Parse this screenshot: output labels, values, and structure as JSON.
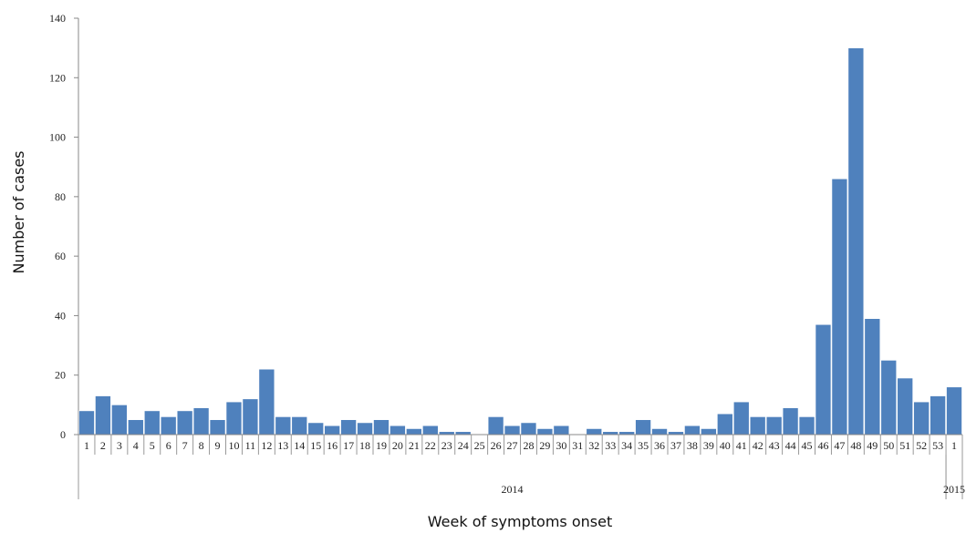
{
  "chart_data": {
    "type": "bar",
    "title": "",
    "xlabel": "Week of symptoms onset",
    "ylabel": "Number of cases",
    "ylim": [
      0,
      140
    ],
    "yticks": [
      0,
      20,
      40,
      60,
      80,
      100,
      120,
      140
    ],
    "grid": false,
    "bar_color": "#4F81BD",
    "categories": [
      "1",
      "2",
      "3",
      "4",
      "5",
      "6",
      "7",
      "8",
      "9",
      "10",
      "11",
      "12",
      "13",
      "14",
      "15",
      "16",
      "17",
      "18",
      "19",
      "20",
      "21",
      "22",
      "23",
      "24",
      "25",
      "26",
      "27",
      "28",
      "29",
      "30",
      "31",
      "32",
      "33",
      "34",
      "35",
      "36",
      "37",
      "38",
      "39",
      "40",
      "41",
      "42",
      "43",
      "44",
      "45",
      "46",
      "47",
      "48",
      "49",
      "50",
      "51",
      "52",
      "53",
      "1"
    ],
    "values": [
      8,
      13,
      10,
      5,
      8,
      6,
      8,
      9,
      5,
      11,
      12,
      22,
      6,
      6,
      4,
      3,
      5,
      4,
      5,
      3,
      2,
      3,
      1,
      1,
      0,
      6,
      3,
      4,
      2,
      3,
      0,
      2,
      1,
      1,
      5,
      2,
      1,
      3,
      2,
      7,
      11,
      6,
      6,
      9,
      6,
      37,
      86,
      130,
      39,
      25,
      19,
      11,
      13,
      16
    ],
    "year_groups": [
      {
        "label": "2014",
        "start": 0,
        "end": 52
      },
      {
        "label": "2015",
        "start": 53,
        "end": 53
      }
    ]
  }
}
